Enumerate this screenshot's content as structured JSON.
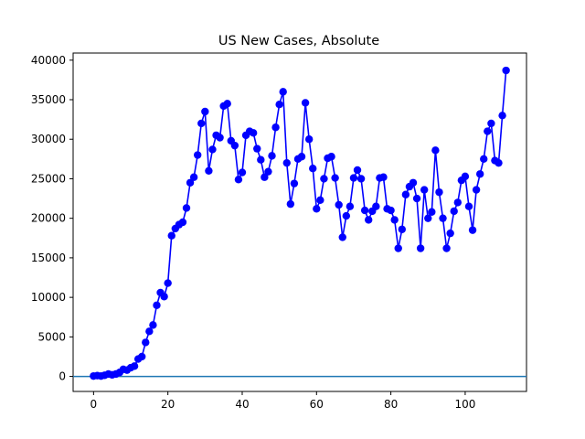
{
  "chart_data": {
    "type": "line",
    "title": "US New Cases, Absolute",
    "xlabel": "",
    "ylabel": "",
    "xlim": [
      -5.5,
      116.5
    ],
    "ylim": [
      -1900,
      40900
    ],
    "xticks": [
      0,
      20,
      40,
      60,
      80,
      100
    ],
    "yticks": [
      0,
      5000,
      10000,
      15000,
      20000,
      25000,
      30000,
      35000,
      40000
    ],
    "grid": false,
    "reference_line": {
      "y": 0,
      "color": "#1f77b4"
    },
    "series": [
      {
        "color": "#0000ff",
        "marker": "circle",
        "x": [
          0,
          1,
          2,
          3,
          4,
          5,
          6,
          7,
          8,
          9,
          10,
          11,
          12,
          13,
          14,
          15,
          16,
          17,
          18,
          19,
          20,
          21,
          22,
          23,
          24,
          25,
          26,
          27,
          28,
          29,
          30,
          31,
          32,
          33,
          34,
          35,
          36,
          37,
          38,
          39,
          40,
          41,
          42,
          43,
          44,
          45,
          46,
          47,
          48,
          49,
          50,
          51,
          52,
          53,
          54,
          55,
          56,
          57,
          58,
          59,
          60,
          61,
          62,
          63,
          64,
          65,
          66,
          67,
          68,
          69,
          70,
          71,
          72,
          73,
          74,
          75,
          76,
          77,
          78,
          79,
          80,
          81,
          82,
          83,
          84,
          85,
          86,
          87,
          88,
          89,
          90,
          91,
          92,
          93,
          94,
          95,
          96,
          97,
          98,
          99,
          100,
          101,
          102,
          103,
          104,
          105,
          106,
          107,
          108,
          109,
          110,
          111
        ],
        "y": [
          50,
          100,
          50,
          150,
          300,
          200,
          300,
          500,
          900,
          800,
          1100,
          1300,
          2200,
          2500,
          4300,
          5700,
          6500,
          9000,
          10600,
          10100,
          11800,
          17800,
          18700,
          19200,
          19500,
          21300,
          24500,
          25200,
          28000,
          32000,
          33500,
          26000,
          28700,
          30500,
          30200,
          34200,
          34500,
          29800,
          29200,
          24900,
          25800,
          30500,
          31000,
          30800,
          28800,
          27400,
          25200,
          25900,
          27900,
          31500,
          34400,
          36000,
          27000,
          21800,
          24400,
          27500,
          27800,
          34600,
          30000,
          26300,
          21200,
          22300,
          25000,
          27600,
          27800,
          25100,
          21700,
          17600,
          20300,
          21500,
          25100,
          26100,
          25000,
          21000,
          19800,
          20900,
          21500,
          25100,
          25200,
          21200,
          21000,
          19800,
          16200,
          18600,
          23000,
          24000,
          24500,
          22500,
          16200,
          23600,
          20000,
          20800,
          28600,
          23300,
          20000,
          16200,
          18100,
          20900,
          22000,
          24800,
          25300,
          21500,
          18500,
          23600,
          25600,
          27500,
          31000,
          32000,
          27300,
          27000,
          33000,
          38700
        ]
      }
    ]
  }
}
